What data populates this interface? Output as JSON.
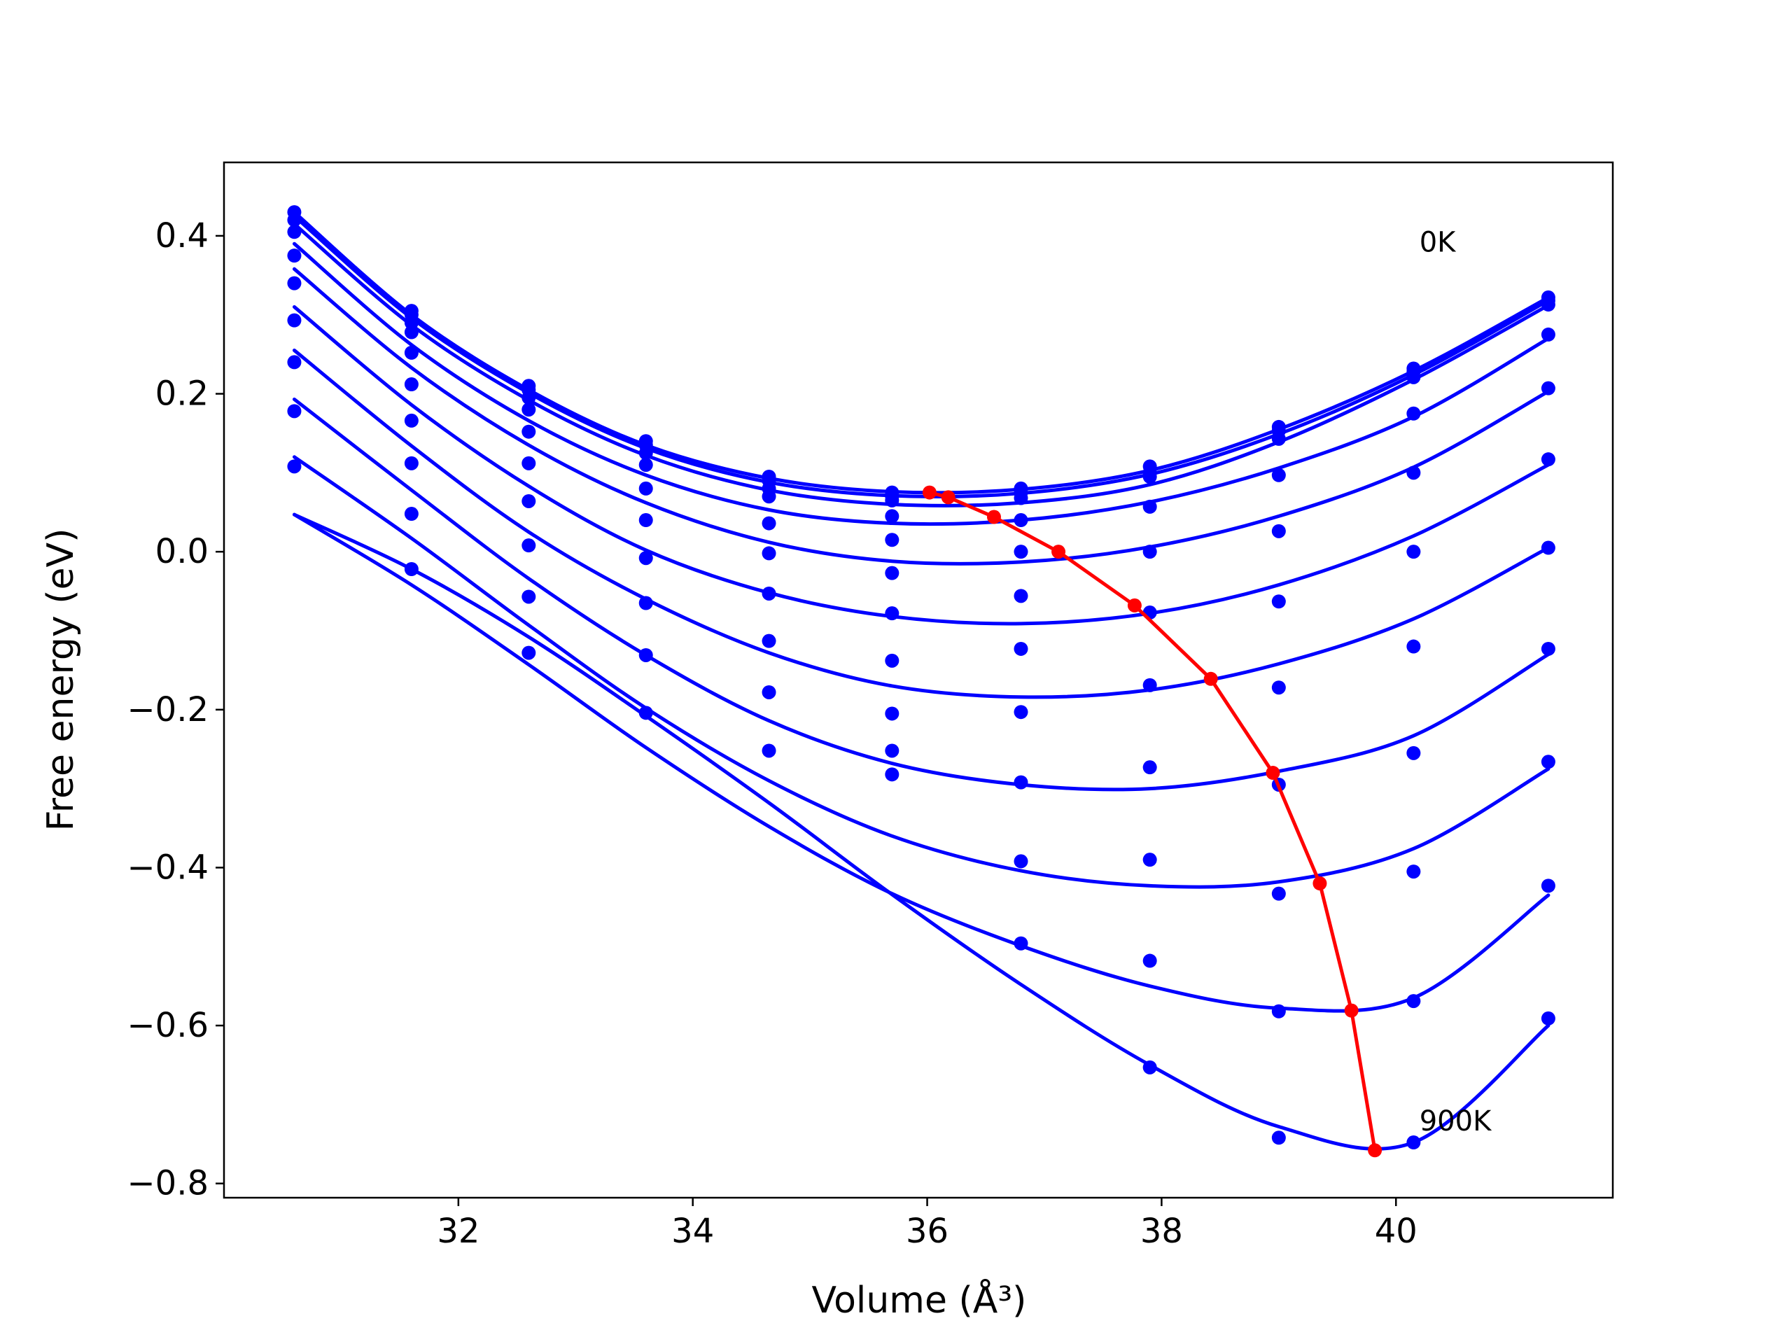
{
  "chart_data": {
    "type": "line",
    "title": "",
    "xlabel": "Volume (Å³)",
    "ylabel": "Free energy (eV)",
    "xlim": [
      30.0,
      41.85
    ],
    "ylim": [
      -0.818,
      0.493
    ],
    "x_ticks": [
      {
        "value": 32,
        "label": "32"
      },
      {
        "value": 34,
        "label": "34"
      },
      {
        "value": 36,
        "label": "36"
      },
      {
        "value": 38,
        "label": "38"
      },
      {
        "value": 40,
        "label": "40"
      }
    ],
    "y_ticks": [
      {
        "value": 0.4,
        "label": "0.4"
      },
      {
        "value": 0.2,
        "label": "0.2"
      },
      {
        "value": 0.0,
        "label": "0.0"
      },
      {
        "value": -0.2,
        "label": "−0.2"
      },
      {
        "value": -0.4,
        "label": "−0.4"
      },
      {
        "value": -0.6,
        "label": "−0.6"
      },
      {
        "value": -0.8,
        "label": "−0.8"
      }
    ],
    "grid": false,
    "volume_points": [
      30.6,
      31.6,
      32.6,
      33.6,
      34.65,
      35.7,
      36.8,
      37.9,
      39.0,
      40.15,
      41.3
    ],
    "series": [
      {
        "color": "#0000ff",
        "fit_points": [
          [
            30.6,
            0.43
          ],
          [
            31.6,
            0.3
          ],
          [
            32.6,
            0.205
          ],
          [
            33.6,
            0.135
          ],
          [
            34.65,
            0.093
          ],
          [
            35.7,
            0.076
          ],
          [
            36.8,
            0.079
          ],
          [
            37.9,
            0.103
          ],
          [
            39.0,
            0.155
          ],
          [
            40.15,
            0.229
          ],
          [
            41.3,
            0.322
          ]
        ],
        "markers": [
          0.43,
          0.305,
          0.21,
          0.14,
          0.095,
          0.075,
          0.08,
          0.108,
          0.158,
          0.232,
          0.322
        ]
      },
      {
        "color": "#0000ff",
        "fit_points": [
          [
            30.6,
            0.425
          ],
          [
            31.6,
            0.296
          ],
          [
            32.6,
            0.201
          ],
          [
            33.6,
            0.131
          ],
          [
            34.65,
            0.088
          ],
          [
            35.7,
            0.071
          ],
          [
            36.8,
            0.074
          ],
          [
            37.9,
            0.098
          ],
          [
            39.0,
            0.149
          ],
          [
            40.15,
            0.224
          ],
          [
            41.3,
            0.318
          ]
        ],
        "markers": [
          0.42,
          0.3,
          0.205,
          0.135,
          0.09,
          0.07,
          0.075,
          0.1,
          0.153,
          0.228,
          0.318
        ]
      },
      {
        "color": "#0000ff",
        "fit_points": [
          [
            30.6,
            0.415
          ],
          [
            31.6,
            0.287
          ],
          [
            32.6,
            0.192
          ],
          [
            33.6,
            0.122
          ],
          [
            34.65,
            0.078
          ],
          [
            35.7,
            0.06
          ],
          [
            36.8,
            0.062
          ],
          [
            37.9,
            0.085
          ],
          [
            39.0,
            0.139
          ],
          [
            40.15,
            0.218
          ],
          [
            41.3,
            0.312
          ]
        ],
        "markers": [
          0.405,
          0.29,
          0.195,
          0.125,
          0.08,
          0.065,
          0.068,
          0.095,
          0.143,
          0.221,
          0.313
        ]
      },
      {
        "color": "#0000ff",
        "fit_points": [
          [
            30.6,
            0.39
          ],
          [
            31.6,
            0.262
          ],
          [
            32.6,
            0.166
          ],
          [
            33.6,
            0.097
          ],
          [
            34.65,
            0.053
          ],
          [
            35.7,
            0.036
          ],
          [
            36.8,
            0.04
          ],
          [
            37.9,
            0.063
          ],
          [
            39.0,
            0.106
          ],
          [
            40.15,
            0.171
          ],
          [
            41.3,
            0.27
          ]
        ],
        "markers": [
          0.375,
          0.278,
          0.18,
          0.11,
          0.07,
          0.045,
          0.04,
          0.057,
          0.097,
          0.175,
          0.275
        ]
      },
      {
        "color": "#0000ff",
        "fit_points": [
          [
            30.6,
            0.358
          ],
          [
            31.6,
            0.233
          ],
          [
            32.6,
            0.135
          ],
          [
            33.6,
            0.062
          ],
          [
            34.65,
            0.012
          ],
          [
            35.7,
            -0.012
          ],
          [
            36.8,
            -0.013
          ],
          [
            37.9,
            0.006
          ],
          [
            39.0,
            0.045
          ],
          [
            40.15,
            0.107
          ],
          [
            41.3,
            0.203
          ]
        ],
        "markers": [
          0.34,
          0.252,
          0.152,
          0.08,
          0.036,
          0.015,
          0.0,
          0.0,
          0.026,
          0.1,
          0.207
        ]
      },
      {
        "color": "#0000ff",
        "fit_points": [
          [
            30.6,
            0.31
          ],
          [
            31.6,
            0.186
          ],
          [
            32.6,
            0.083
          ],
          [
            33.6,
            0.002
          ],
          [
            34.65,
            -0.052
          ],
          [
            35.7,
            -0.082
          ],
          [
            36.8,
            -0.091
          ],
          [
            37.9,
            -0.078
          ],
          [
            39.0,
            -0.042
          ],
          [
            40.15,
            0.02
          ],
          [
            41.3,
            0.11
          ]
        ],
        "markers": [
          0.293,
          0.212,
          0.112,
          0.04,
          -0.002,
          -0.027,
          -0.056,
          -0.077,
          -0.063,
          0.0,
          0.117
        ]
      },
      {
        "color": "#0000ff",
        "fit_points": [
          [
            30.6,
            0.255
          ],
          [
            31.6,
            0.134
          ],
          [
            32.6,
            0.025
          ],
          [
            33.6,
            -0.06
          ],
          [
            34.65,
            -0.128
          ],
          [
            35.7,
            -0.17
          ],
          [
            36.8,
            -0.184
          ],
          [
            37.9,
            -0.175
          ],
          [
            39.0,
            -0.142
          ],
          [
            40.15,
            -0.085
          ],
          [
            41.3,
            0.005
          ]
        ],
        "markers": [
          0.24,
          0.166,
          0.064,
          -0.008,
          -0.053,
          -0.078,
          -0.123,
          -0.169,
          -0.172,
          -0.12,
          0.005
        ]
      },
      {
        "color": "#0000ff",
        "fit_points": [
          [
            30.6,
            0.193
          ],
          [
            31.6,
            0.078
          ],
          [
            32.6,
            -0.034
          ],
          [
            33.6,
            -0.131
          ],
          [
            34.65,
            -0.214
          ],
          [
            35.7,
            -0.268
          ],
          [
            36.8,
            -0.295
          ],
          [
            37.9,
            -0.3
          ],
          [
            39.0,
            -0.278
          ],
          [
            40.15,
            -0.233
          ],
          [
            41.3,
            -0.13
          ]
        ],
        "markers": [
          0.178,
          0.112,
          0.008,
          -0.065,
          -0.113,
          -0.138,
          -0.203,
          -0.273,
          -0.295,
          -0.255,
          -0.123
        ]
      },
      {
        "color": "#0000ff",
        "fit_points": [
          [
            30.6,
            0.12
          ],
          [
            31.6,
            0.017
          ],
          [
            32.6,
            -0.093
          ],
          [
            33.6,
            -0.198
          ],
          [
            34.65,
            -0.29
          ],
          [
            35.7,
            -0.36
          ],
          [
            36.8,
            -0.404
          ],
          [
            37.9,
            -0.423
          ],
          [
            39.0,
            -0.418
          ],
          [
            40.15,
            -0.376
          ],
          [
            41.3,
            -0.275
          ]
        ],
        "markers": [
          0.108,
          0.048,
          -0.057,
          -0.131,
          -0.178,
          -0.205,
          -0.292,
          -0.39,
          -0.433,
          -0.405,
          -0.266
        ]
      },
      {
        "color": "#0000ff",
        "fit_points": [
          [
            30.6,
            0.047
          ],
          [
            31.6,
            -0.042
          ],
          [
            32.6,
            -0.143
          ],
          [
            33.6,
            -0.248
          ],
          [
            34.65,
            -0.348
          ],
          [
            35.7,
            -0.433
          ],
          [
            36.8,
            -0.499
          ],
          [
            37.9,
            -0.55
          ],
          [
            39.0,
            -0.578
          ],
          [
            40.15,
            -0.565
          ],
          [
            41.3,
            -0.435
          ]
        ],
        "markers": [
          -0.022,
          -0.128,
          -0.204,
          -0.252,
          -0.282,
          -0.392,
          -0.518,
          -0.582,
          -0.569,
          -0.423
        ]
      },
      {
        "color": "#0000ff",
        "fit_points": [
          [
            30.6,
            0.047
          ],
          [
            31.6,
            -0.022
          ],
          [
            32.6,
            -0.108
          ],
          [
            33.6,
            -0.208
          ],
          [
            34.65,
            -0.318
          ],
          [
            35.7,
            -0.434
          ],
          [
            36.8,
            -0.548
          ],
          [
            37.9,
            -0.65
          ],
          [
            39.0,
            -0.728
          ],
          [
            40.15,
            -0.748
          ],
          [
            41.3,
            -0.6
          ]
        ],
        "markers": [
          -0.252,
          -0.496,
          -0.653,
          -0.742,
          -0.748,
          -0.591
        ]
      }
    ],
    "min_path": {
      "color": "#ff0000",
      "points": [
        [
          36.02,
          0.075
        ],
        [
          36.18,
          0.069
        ],
        [
          36.57,
          0.044
        ],
        [
          37.12,
          0.0
        ],
        [
          37.77,
          -0.068
        ],
        [
          38.42,
          -0.161
        ],
        [
          38.95,
          -0.28
        ],
        [
          39.35,
          -0.42
        ],
        [
          39.62,
          -0.581
        ],
        [
          39.82,
          -0.758
        ]
      ]
    },
    "annotations": [
      {
        "text": "0K",
        "x": 40.2,
        "y": 0.38
      },
      {
        "text": "900K",
        "x": 40.2,
        "y": -0.733
      }
    ]
  }
}
